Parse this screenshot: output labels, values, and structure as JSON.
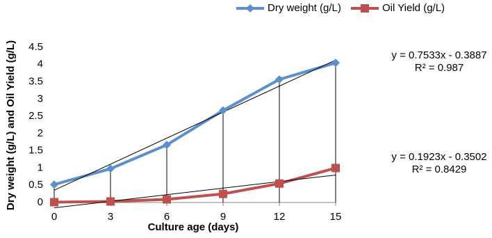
{
  "chart_data": {
    "type": "line",
    "x_label": "Culture age  (days)",
    "y_label": "Dry weight (g/L)  and Oil Yield (g/L)",
    "x": [
      0,
      3,
      6,
      9,
      12,
      15
    ],
    "series": [
      {
        "name": "Dry weight (g/L)",
        "color": "#5b8fd0",
        "marker": "diamond",
        "values": [
          0.52,
          0.98,
          1.67,
          2.67,
          3.57,
          4.05
        ]
      },
      {
        "name": "Oil Yield (g/L)",
        "color": "#c0504d",
        "marker": "square",
        "values": [
          0.01,
          0.03,
          0.09,
          0.25,
          0.55,
          1.0
        ]
      }
    ],
    "xlim": [
      0,
      15
    ],
    "xticks": [
      0,
      3,
      6,
      9,
      12,
      15
    ],
    "ylim": [
      0,
      4.5
    ],
    "yticks": [
      0,
      0.5,
      1,
      1.5,
      2,
      2.5,
      3,
      3.5,
      4,
      4.5
    ],
    "trendlines": true,
    "drop_lines": true,
    "legend": "top",
    "annotations": [
      "y = 0.7533x - 0.3887",
      "R² = 0.987",
      "y = 0.1923x - 0.3502",
      "R² = 0.8429"
    ]
  }
}
